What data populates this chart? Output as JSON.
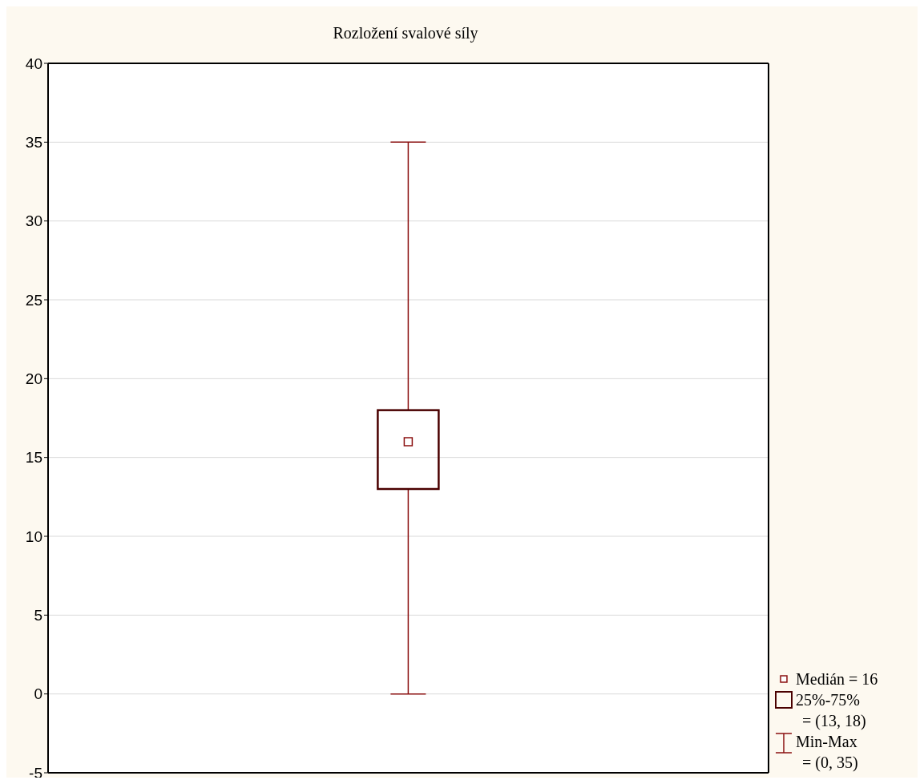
{
  "chart_data": {
    "type": "box",
    "title": "Rozložení svalové síly",
    "categories": [
      null
    ],
    "series": [
      {
        "color": "#4a0000",
        "boxes": [
          {
            "low": 0,
            "q1": 13,
            "median": 16,
            "q3": 18,
            "high": 35
          }
        ]
      }
    ],
    "ylim": [
      -5,
      40
    ],
    "yticks": [
      -5,
      0,
      5,
      10,
      15,
      20,
      25,
      30,
      35,
      40
    ],
    "grid": "y",
    "annotations": [
      "Medián = 16",
      "25%-75%",
      "= (13, 18)",
      "Min-Max",
      "= (0, 35)"
    ]
  }
}
